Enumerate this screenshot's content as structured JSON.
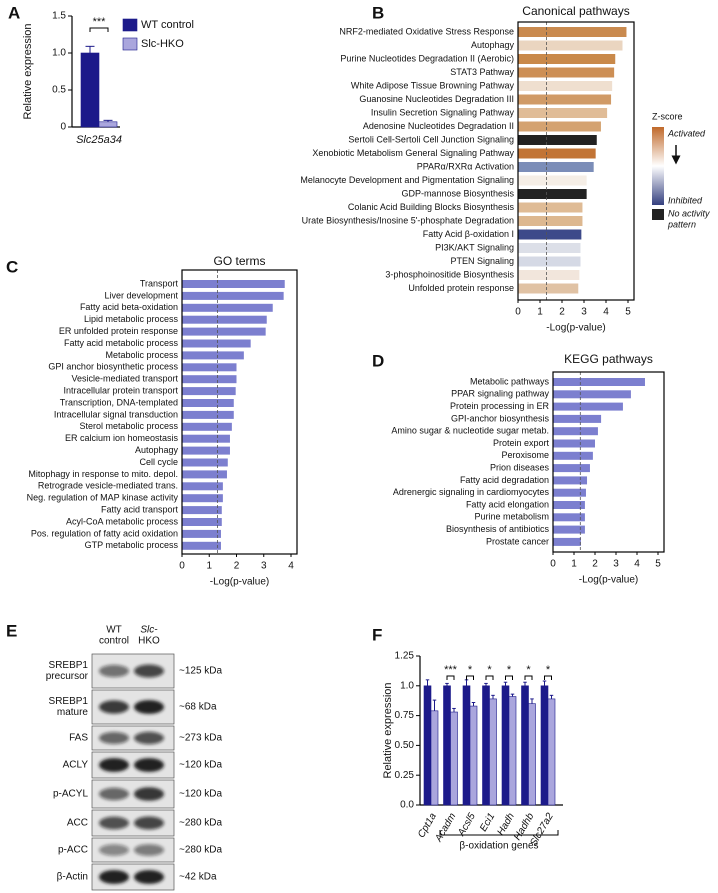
{
  "chart_data": [
    {
      "type": "bar",
      "label": "A",
      "categories": [
        "Slc25a34"
      ],
      "series": [
        {
          "name": "WT control",
          "color": "#1c1a8a",
          "values": [
            1.0
          ],
          "errors": [
            0.09
          ]
        },
        {
          "name": "Slc-HKO",
          "color": "#aaa6dd",
          "values": [
            0.07
          ],
          "errors": [
            0.02
          ]
        }
      ],
      "significance": [
        "***"
      ],
      "y_label": "Relative expression",
      "ylim": [
        0,
        1.5
      ],
      "yticks": [
        0,
        0.5,
        {
          "value": 1,
          "label": "1.0"
        },
        1.5
      ]
    },
    {
      "type": "hbar",
      "label": "B",
      "title": "Canonical pathways",
      "categories": [
        "NRF2-mediated Oxidative Stress Response",
        "Autophagy",
        "Purine Nucleotides Degradation II (Aerobic)",
        "STAT3 Pathway",
        "White Adipose Tissue Browning Pathway",
        "Guanosine Nucleotides Degradation III",
        "Insulin Secretion Signaling Pathway",
        "Adenosine Nucleotides Degradation II",
        "Sertoli Cell-Sertoli Cell Junction Signaling",
        "Xenobiotic Metabolism General Signaling Pathway",
        "PPARα/RXRα Activation",
        "Melanocyte Development and Pigmentation Signaling",
        "GDP-mannose Biosynthesis",
        "Colanic Acid Building Blocks Biosynthesis",
        "Urate Biosynthesis/Inosine 5'-phosphate Degradation",
        "Fatty Acid β-oxidation I",
        "PI3K/AKT Signaling",
        "PTEN Signaling",
        "3-phosphoinositide Biosynthesis",
        "Unfolded protein response"
      ],
      "values": [
        4.93,
        4.75,
        4.42,
        4.37,
        4.28,
        4.23,
        4.05,
        3.77,
        3.58,
        3.53,
        3.44,
        3.12,
        3.12,
        2.93,
        2.93,
        2.88,
        2.84,
        2.84,
        2.79,
        2.74
      ],
      "colors": [
        "#c98a4f",
        "#ead5c0",
        "#c9894a",
        "#cd8f55",
        "#efdfcf",
        "#d09a66",
        "#e0bc97",
        "#d4a270",
        "#222222",
        "#c27435",
        "#7b8db8",
        "#f5eee6",
        "#222222",
        "#dfbb95",
        "#ddb890",
        "#3d4a8a",
        "#dcdfe8",
        "#d5d9e5",
        "#f2e6dc",
        "#e0c2a4"
      ],
      "threshold": 1.3,
      "x_label": "-Log(p-value)",
      "xlim": [
        0,
        5
      ],
      "xticks": [
        0,
        1,
        2,
        3,
        4,
        5
      ],
      "legend": {
        "title": "Z-score",
        "activated": "Activated",
        "inhibited": "Inhibited",
        "no_pattern": [
          "No activity",
          "pattern"
        ],
        "gradient": [
          "#c0692a",
          "#ffffff",
          "#34407f"
        ],
        "no_pattern_color": "#222222"
      }
    },
    {
      "type": "hbar",
      "label": "C",
      "title": "GO terms",
      "categories": [
        "Transport",
        "Liver development",
        "Fatty acid beta-oxidation",
        "Lipid metabolic process",
        "ER unfolded protein response",
        "Fatty acid metabolic process",
        "Metabolic process",
        "GPI anchor biosynthetic process",
        "Vesicle-mediated transport",
        "Intracellular protein transport",
        "Transcription, DNA-templated",
        "Intracellular signal transduction",
        "Sterol metabolic process",
        "ER calcium ion homeostasis",
        "Autophagy",
        "Cell cycle",
        "Mitophagy in response to mito. depol.",
        "Retrograde vesicle-mediated trans.",
        "Neg. regulation of MAP kinase activity",
        "Fatty acid transport",
        "Acyl-CoA metabolic process",
        "Pos. regulation of fatty acid oxidation",
        "GTP metabolic process"
      ],
      "values": [
        3.77,
        3.73,
        3.33,
        3.11,
        3.07,
        2.52,
        2.27,
        2.0,
        2.0,
        1.97,
        1.9,
        1.9,
        1.83,
        1.76,
        1.76,
        1.68,
        1.65,
        1.5,
        1.5,
        1.46,
        1.46,
        1.43,
        1.43
      ],
      "color": "#7c7fcf",
      "threshold": 1.3,
      "x_label": "-Log(p-value)",
      "xlim": [
        0,
        4
      ],
      "xticks": [
        0,
        1,
        2,
        3,
        4
      ]
    },
    {
      "type": "hbar",
      "label": "D",
      "title": "KEGG pathways",
      "categories": [
        "Metabolic pathways",
        "PPAR signaling pathway",
        "Protein processing in ER",
        "GPI-anchor biosynthesis",
        "Amino sugar & nucleotide sugar metab.",
        "Protein export",
        "Peroxisome",
        "Prion diseases",
        "Fatty acid degradation",
        "Adrenergic signaling in cardiomyocytes",
        "Fatty acid elongation",
        "Purine metabolism",
        "Biosynthesis of antibiotics",
        "Prostate cancer"
      ],
      "values": [
        4.38,
        3.71,
        3.33,
        2.29,
        2.14,
        2.0,
        1.9,
        1.76,
        1.62,
        1.57,
        1.52,
        1.52,
        1.52,
        1.33
      ],
      "color": "#7c7fcf",
      "threshold": 1.3,
      "x_label": "-Log(p-value)",
      "xlim": [
        0,
        5
      ],
      "xticks": [
        0,
        1,
        2,
        3,
        4,
        5
      ]
    },
    {
      "type": "bar",
      "label": "F",
      "categories": [
        "Cpt1a",
        "Acadm",
        "Acsl5",
        "Eci1",
        "Hadh",
        "Hadhb",
        "Slc27a2"
      ],
      "series": [
        {
          "name": "WT control",
          "color": "#1c1a8a",
          "values": [
            1.0,
            1.0,
            1.0,
            1.0,
            1.0,
            1.0,
            1.0
          ],
          "errors": [
            0.05,
            0.02,
            0.05,
            0.02,
            0.03,
            0.03,
            0.04
          ]
        },
        {
          "name": "Slc-HKO",
          "color": "#aaa6dd",
          "values": [
            0.79,
            0.78,
            0.83,
            0.89,
            0.91,
            0.85,
            0.89
          ],
          "errors": [
            0.09,
            0.03,
            0.03,
            0.03,
            0.02,
            0.04,
            0.03
          ]
        }
      ],
      "significance": [
        null,
        "***",
        "*",
        "*",
        "*",
        "*",
        "*"
      ],
      "y_label": "Relative expression",
      "x_label": "β-oxidation genes",
      "ylim": [
        0,
        1.25
      ],
      "yticks": [
        {
          "value": 0,
          "label": "0.0"
        },
        0.25,
        {
          "value": 0.5,
          "label": "0.50"
        },
        0.75,
        {
          "value": 1,
          "label": "1.0"
        },
        1.25
      ]
    }
  ],
  "blot": {
    "label": "E",
    "columns": [
      [
        "WT",
        "control"
      ],
      [
        "Slc-",
        "HKO"
      ]
    ],
    "rows": [
      {
        "protein": [
          "SREBP1",
          "precursor"
        ],
        "size": "~125 kDa"
      },
      {
        "protein": [
          "SREBP1",
          "mature"
        ],
        "size": "~68 kDa"
      },
      {
        "protein": [
          "FAS"
        ],
        "size": "~273 kDa"
      },
      {
        "protein": [
          "ACLY"
        ],
        "size": "~120 kDa"
      },
      {
        "protein": [
          "p-ACYL"
        ],
        "size": "~120 kDa"
      },
      {
        "protein": [
          "ACC"
        ],
        "size": "~280 kDa"
      },
      {
        "protein": [
          "p-ACC"
        ],
        "size": "~280 kDa"
      },
      {
        "protein": [
          "β-Actin"
        ],
        "size": "~42 kDa"
      }
    ]
  }
}
